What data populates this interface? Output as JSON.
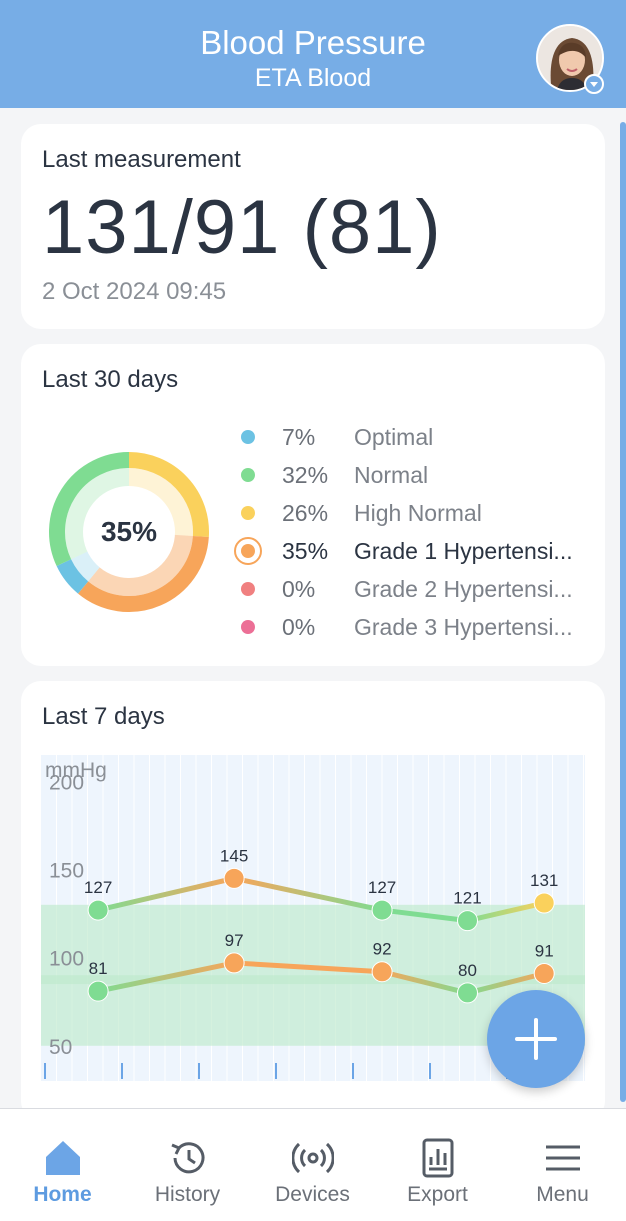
{
  "header": {
    "title": "Blood Pressure",
    "subtitle": "ETA Blood"
  },
  "last_measurement": {
    "label": "Last measurement",
    "value": "131/91 (81)",
    "datetime": "2 Oct 2024 09:45"
  },
  "last_30_days": {
    "label": "Last 30 days",
    "center_value": "35%",
    "categories": [
      {
        "percent": "7%",
        "name": "Optimal",
        "color": "#6cc2e3",
        "value": 7
      },
      {
        "percent": "32%",
        "name": "Normal",
        "color": "#7fdc92",
        "value": 32
      },
      {
        "percent": "26%",
        "name": "High Normal",
        "color": "#fad15c",
        "value": 26
      },
      {
        "percent": "35%",
        "name": "Grade 1 Hypertensi...",
        "color": "#f7a55a",
        "value": 35
      },
      {
        "percent": "0%",
        "name": "Grade 2 Hypertensi...",
        "color": "#f08080",
        "value": 0
      },
      {
        "percent": "0%",
        "name": "Grade 3 Hypertensi...",
        "color": "#ec6f96",
        "value": 0
      }
    ],
    "active_index": 3
  },
  "last_7_days": {
    "label": "Last 7 days",
    "unit": "mmHg",
    "tick_labels": [
      "200",
      "150",
      "100",
      "50"
    ]
  },
  "chart_data": {
    "type": "line",
    "ylabel": "mmHg",
    "yticks": [
      50,
      100,
      150,
      200
    ],
    "ylim": [
      30,
      215
    ],
    "bands": [
      [
        85,
        130
      ],
      [
        50,
        90
      ]
    ],
    "series": [
      {
        "name": "",
        "points": [
          {
            "x": 0.105,
            "y": 127,
            "label": "127",
            "color": "#7fdc92"
          },
          {
            "x": 0.355,
            "y": 145,
            "label": "145",
            "color": "#f7a55a"
          },
          {
            "x": 0.627,
            "y": 127,
            "label": "127",
            "color": "#7fdc92"
          },
          {
            "x": 0.784,
            "y": 121,
            "label": "121",
            "color": "#7fdc92"
          },
          {
            "x": 0.925,
            "y": 131,
            "label": "131",
            "color": "#fad15c"
          }
        ]
      },
      {
        "name": "",
        "points": [
          {
            "x": 0.105,
            "y": 81,
            "label": "81",
            "color": "#7fdc92"
          },
          {
            "x": 0.355,
            "y": 97,
            "label": "97",
            "color": "#f7a55a"
          },
          {
            "x": 0.627,
            "y": 92,
            "label": "92",
            "color": "#f7a55a"
          },
          {
            "x": 0.784,
            "y": 80,
            "label": "80",
            "color": "#7fdc92"
          },
          {
            "x": 0.925,
            "y": 91,
            "label": "91",
            "color": "#f7a55a"
          }
        ]
      }
    ]
  },
  "add_button": {
    "icon": "plus-icon"
  },
  "nav": [
    {
      "label": "Home",
      "icon": "home-icon"
    },
    {
      "label": "History",
      "icon": "history-icon"
    },
    {
      "label": "Devices",
      "icon": "devices-icon"
    },
    {
      "label": "Export",
      "icon": "export-icon"
    },
    {
      "label": "Menu",
      "icon": "menu-icon"
    }
  ]
}
